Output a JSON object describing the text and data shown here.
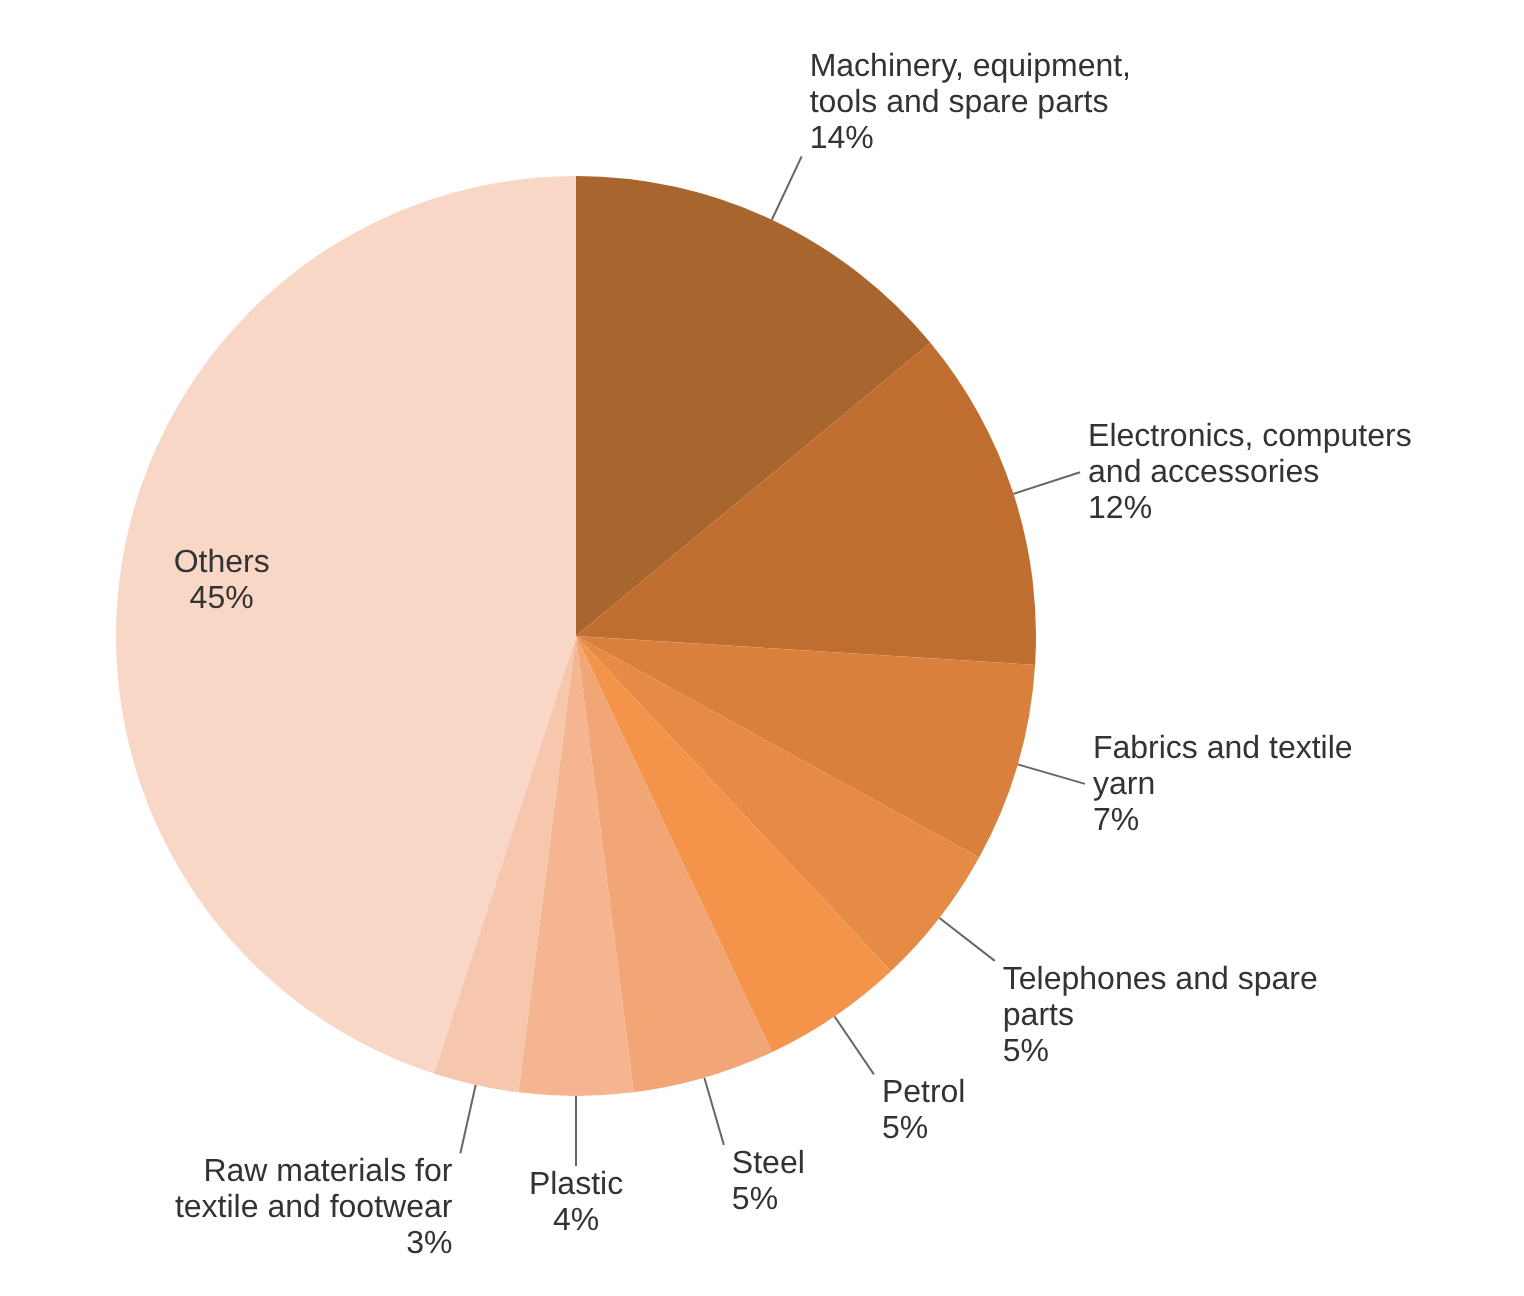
{
  "chart_data": {
    "type": "pie",
    "categories": [
      "Machinery, equipment, tools and spare parts",
      "Electronics, computers and accessories",
      "Fabrics and textile yarn",
      "Telephones and spare parts",
      "Petrol",
      "Steel",
      "Plastic",
      "Raw materials for textile and footwear",
      "Others"
    ],
    "values": [
      14,
      12,
      7,
      5,
      5,
      5,
      4,
      3,
      45
    ],
    "value_labels": [
      "14%",
      "12%",
      "7%",
      "5%",
      "5%",
      "5%",
      "4%",
      "3%",
      "45%"
    ],
    "colors": [
      "#a8652d",
      "#c06d30",
      "#d9803d",
      "#e68b45",
      "#f4944a",
      "#f2a675",
      "#f4b590",
      "#f6c6ad",
      "#f9d7c6"
    ]
  }
}
